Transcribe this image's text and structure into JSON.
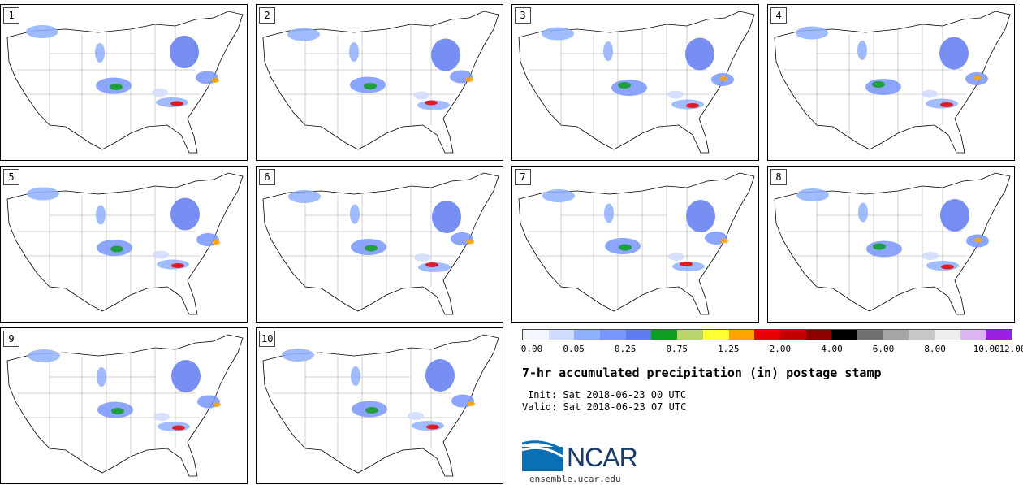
{
  "panels": [
    {
      "label": "1"
    },
    {
      "label": "2"
    },
    {
      "label": "3"
    },
    {
      "label": "4"
    },
    {
      "label": "5"
    },
    {
      "label": "6"
    },
    {
      "label": "7"
    },
    {
      "label": "8"
    },
    {
      "label": "9"
    },
    {
      "label": "10"
    }
  ],
  "colorbar": {
    "colors": [
      "#f2f6ff",
      "#d0dcff",
      "#8fb0ff",
      "#7895ff",
      "#5f7bf0",
      "#0e9e1f",
      "#b8d46a",
      "#ffff33",
      "#ffa400",
      "#e80000",
      "#c50000",
      "#8c0000",
      "#000000",
      "#707070",
      "#a6a6a6",
      "#c8c8c8",
      "#ededed",
      "#dcb4f0",
      "#9a1fe0"
    ],
    "ticks": [
      "0.00",
      "0.05",
      "0.25",
      "0.75",
      "1.25",
      "2.00",
      "4.00",
      "6.00",
      "8.00",
      "10.00",
      "12.00"
    ]
  },
  "title": "7-hr accumulated precipitation (in) postage stamp",
  "init": "Init: Sat 2018-06-23 00 UTC",
  "valid": "Valid: Sat 2018-06-23 07 UTC",
  "logo": {
    "text": "NCAR",
    "site": "ensemble.ucar.edu"
  }
}
